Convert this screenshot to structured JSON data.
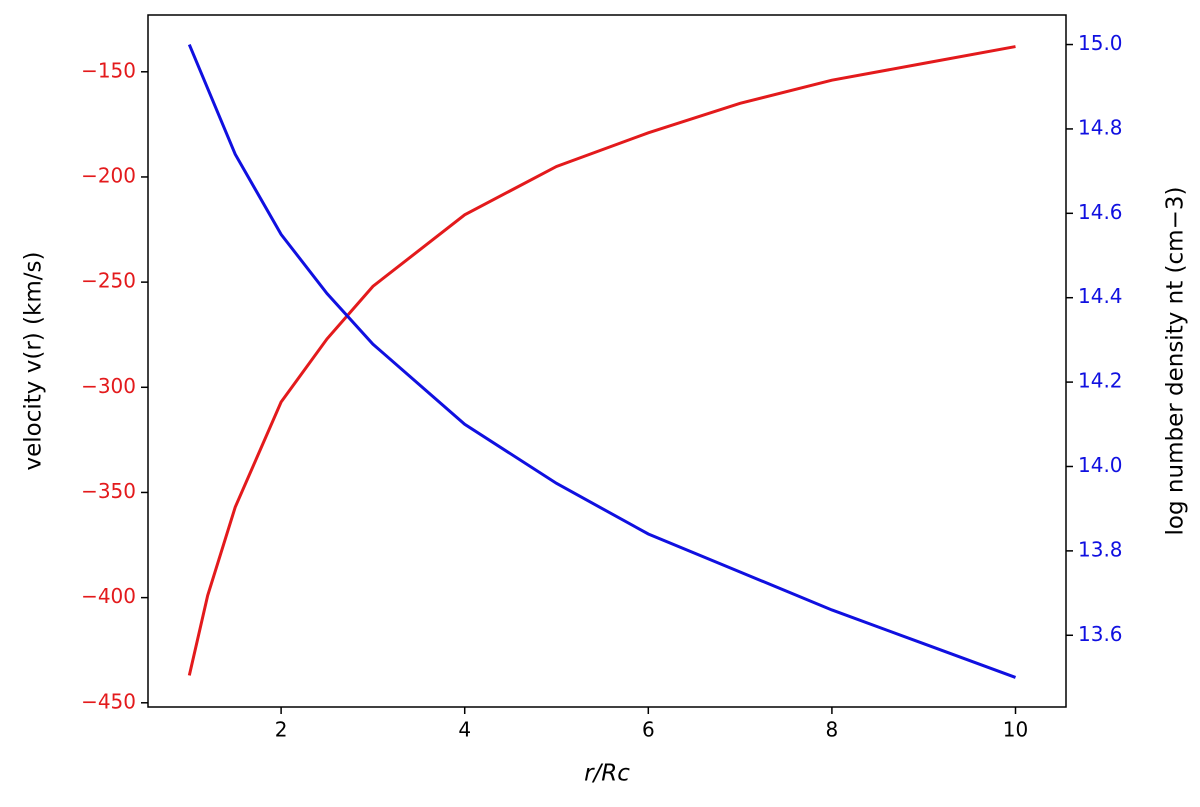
{
  "chart_data": {
    "type": "line",
    "xlabel": "r/Rc",
    "ylabel": "velocity v(r) (km/s)",
    "y2label": "log number density nt (cm−3)",
    "xlim": [
      0.55,
      10.55
    ],
    "xticks": [
      2,
      4,
      6,
      8,
      10
    ],
    "ylim": [
      -452,
      -123
    ],
    "yticks": [
      {
        "value": -450,
        "label": "−450"
      },
      {
        "value": -400,
        "label": "−400"
      },
      {
        "value": -350,
        "label": "−350"
      },
      {
        "value": -300,
        "label": "−300"
      },
      {
        "value": -250,
        "label": "−250"
      },
      {
        "value": -200,
        "label": "−200"
      },
      {
        "value": -150,
        "label": "−150"
      }
    ],
    "y2lim": [
      13.43,
      15.07
    ],
    "y2ticks": [
      13.6,
      13.8,
      {
        "value": 14.0,
        "label": "14.0"
      },
      14.2,
      14.4,
      14.6,
      14.8,
      {
        "value": 15.0,
        "label": "15.0"
      }
    ],
    "series": [
      {
        "name": "velocity",
        "color": "#e31a1c",
        "axis": "y",
        "x": [
          1,
          1.2,
          1.5,
          2,
          2.5,
          3,
          4,
          5,
          6,
          7,
          8,
          9,
          10
        ],
        "values": [
          -437,
          -399,
          -357,
          -307,
          -277,
          -252,
          -218,
          -195,
          -179,
          -165,
          -154,
          -146,
          -138
        ]
      },
      {
        "name": "log number density",
        "color": "#1010e0",
        "axis": "y2",
        "x": [
          1,
          1.5,
          2,
          2.5,
          3,
          4,
          5,
          6,
          7,
          8,
          9,
          10
        ],
        "values": [
          15.0,
          14.74,
          14.55,
          14.41,
          14.29,
          14.1,
          13.96,
          13.84,
          13.75,
          13.66,
          13.58,
          13.5
        ]
      }
    ]
  }
}
